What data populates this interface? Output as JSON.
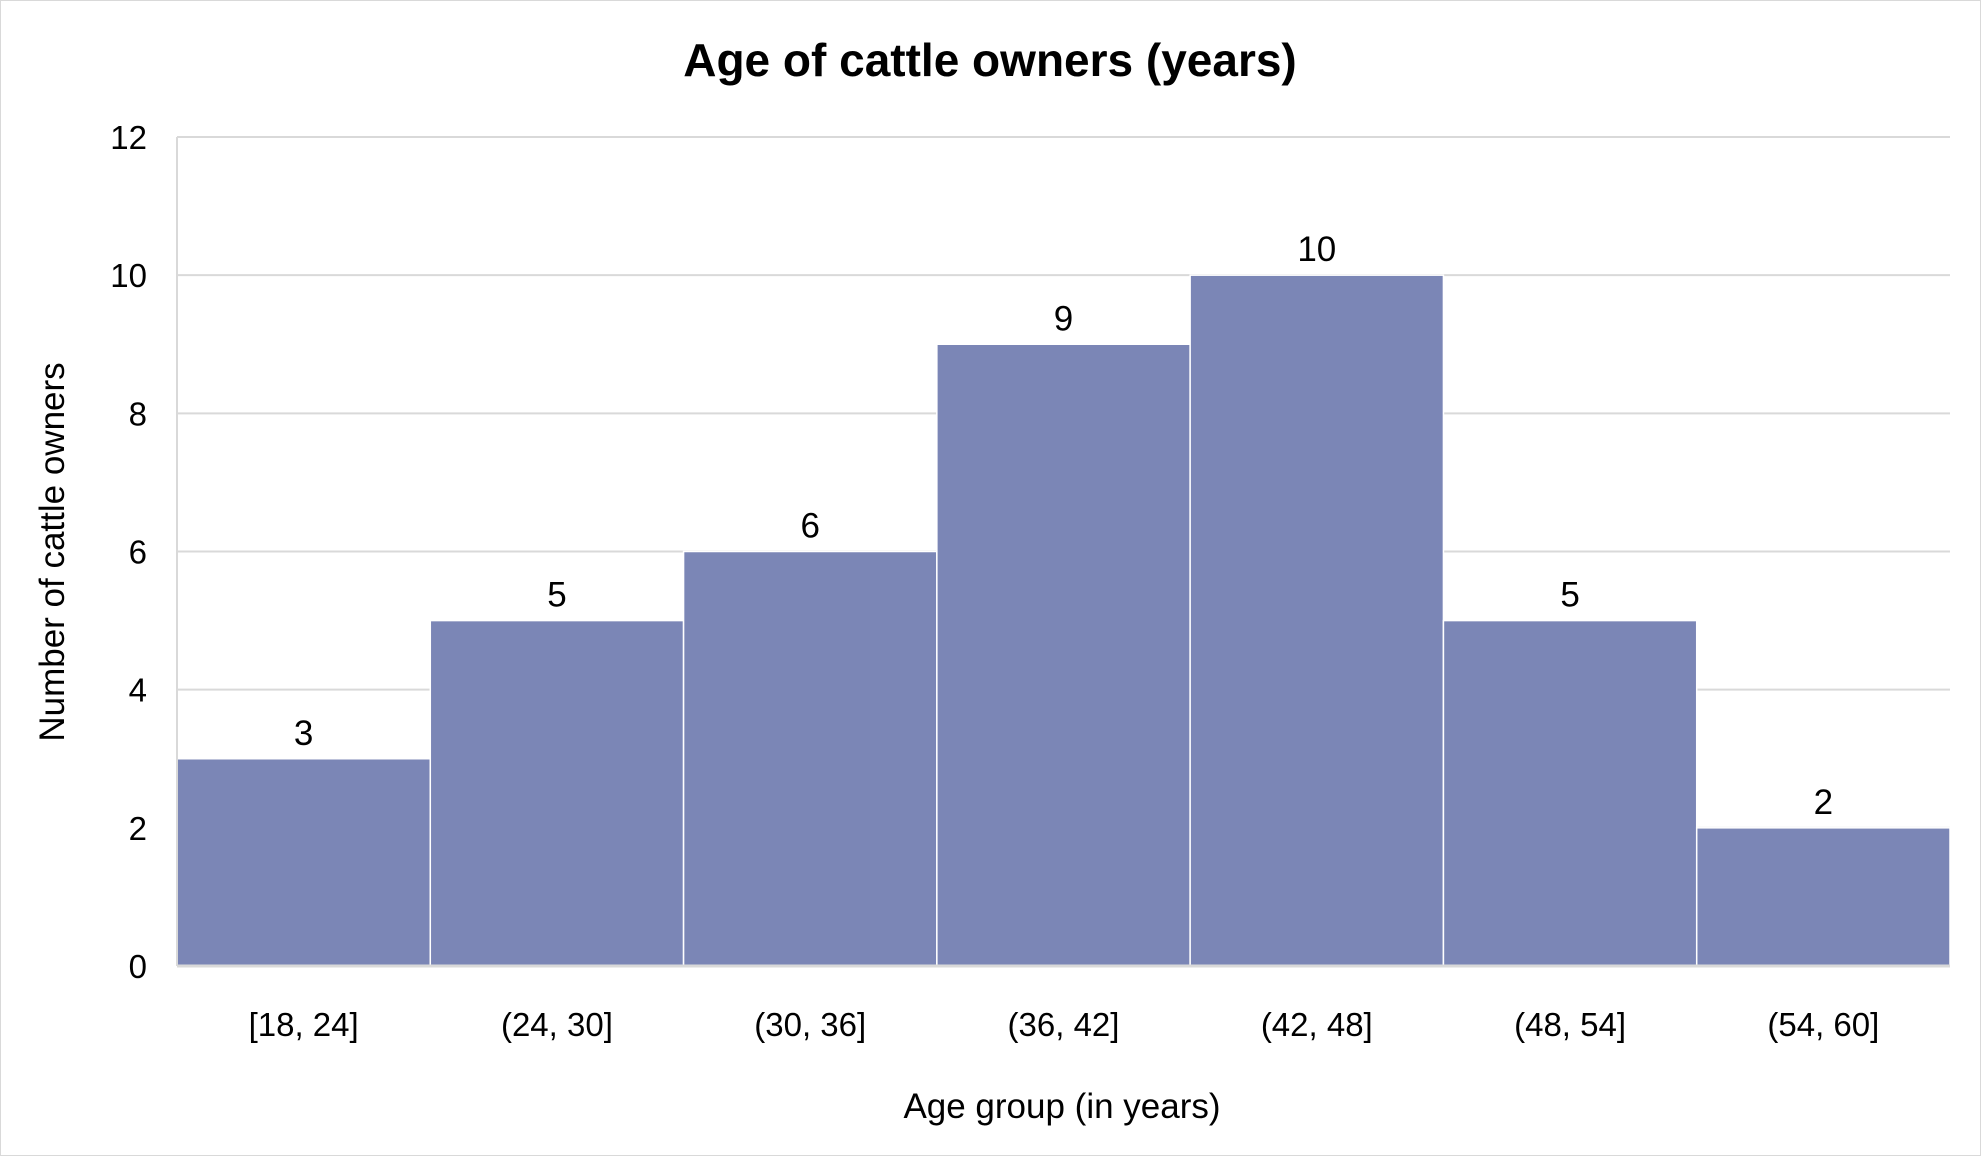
{
  "chart_data": {
    "type": "bar",
    "title": "Age of cattle owners (years)",
    "xlabel": "Age group (in years)",
    "ylabel": "Number of cattle owners",
    "categories": [
      "[18, 24]",
      "(24, 30]",
      "(30, 36]",
      "(36, 42]",
      "(42, 48]",
      "(48, 54]",
      "(54, 60]"
    ],
    "values": [
      3,
      5,
      6,
      9,
      10,
      5,
      2
    ],
    "ylim": [
      0,
      12
    ],
    "yticks": [
      0,
      2,
      4,
      6,
      8,
      10,
      12
    ],
    "grid": true,
    "legend": "none",
    "bar_color": "#7b86b6",
    "grid_color": "#d9d9d9"
  }
}
